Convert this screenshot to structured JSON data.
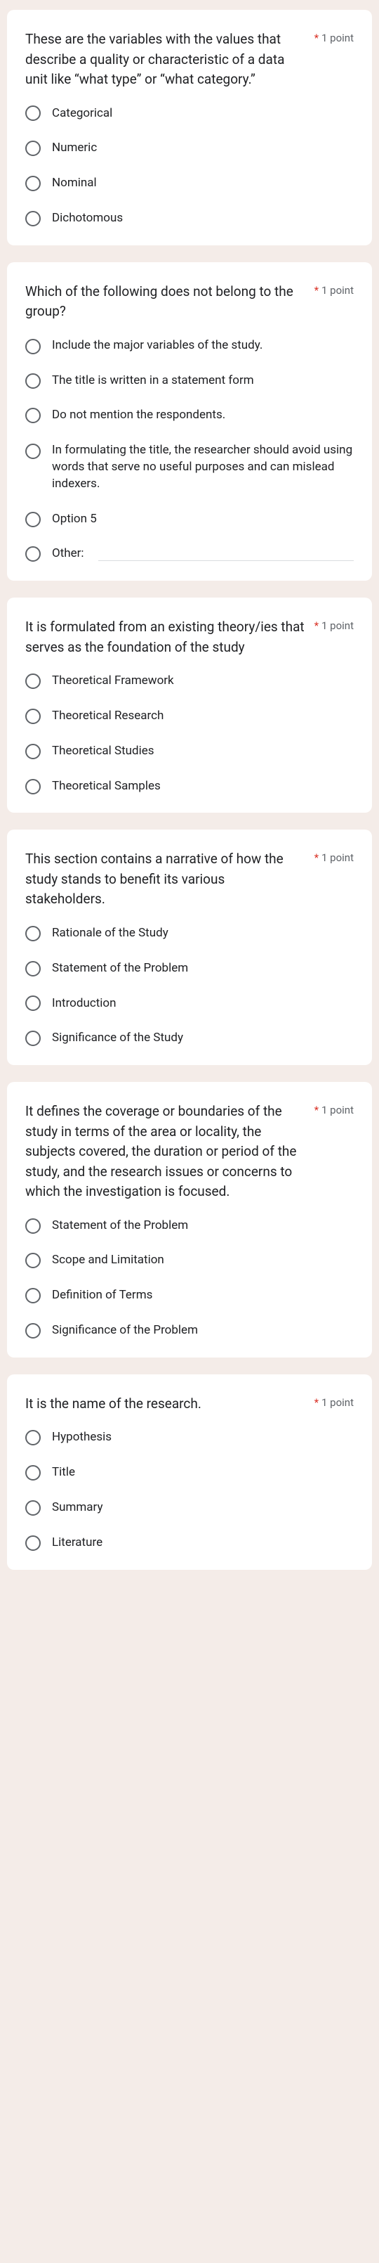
{
  "point_label": "1 point",
  "other_label": "Other:",
  "questions": [
    {
      "text": "These are the variables with the values that describe a quality or characteristic of  a data unit like “what type” or “what category.”",
      "options": [
        "Categorical",
        "Numeric",
        "Nominal",
        "Dichotomous"
      ],
      "has_other": false
    },
    {
      "text": "Which of the following does not belong to the group?",
      "options": [
        "Include the major variables of the study.",
        "The title is written in a statement form",
        "Do not mention the respondents.",
        "In formulating the title, the researcher should avoid using words that serve no useful purposes and can mislead indexers.",
        "Option 5"
      ],
      "has_other": true
    },
    {
      "text": "It is formulated from an existing theory/ies that serves as the foundation of the  study",
      "options": [
        "Theoretical Framework",
        "Theoretical Research",
        "Theoretical Studies",
        "Theoretical Samples"
      ],
      "has_other": false
    },
    {
      "text": "This section contains a narrative of how the study stands to benefit its various stakeholders.",
      "options": [
        "Rationale of the Study",
        "Statement of the Problem",
        "Introduction",
        "Significance of the Study"
      ],
      "has_other": false
    },
    {
      "text": "It defines the coverage or boundaries of the study in terms of the area or locality, the subjects covered, the duration or period of the study, and the research issues or concerns to which the investigation is focused.",
      "options": [
        "Statement of  the Problem",
        "Scope and Limitation",
        "Definition of Terms",
        "Significance of the Problem"
      ],
      "has_other": false
    },
    {
      "text": "It is the name of the research.",
      "options": [
        "Hypothesis",
        "Title",
        "Summary",
        "Literature"
      ],
      "has_other": false
    }
  ]
}
